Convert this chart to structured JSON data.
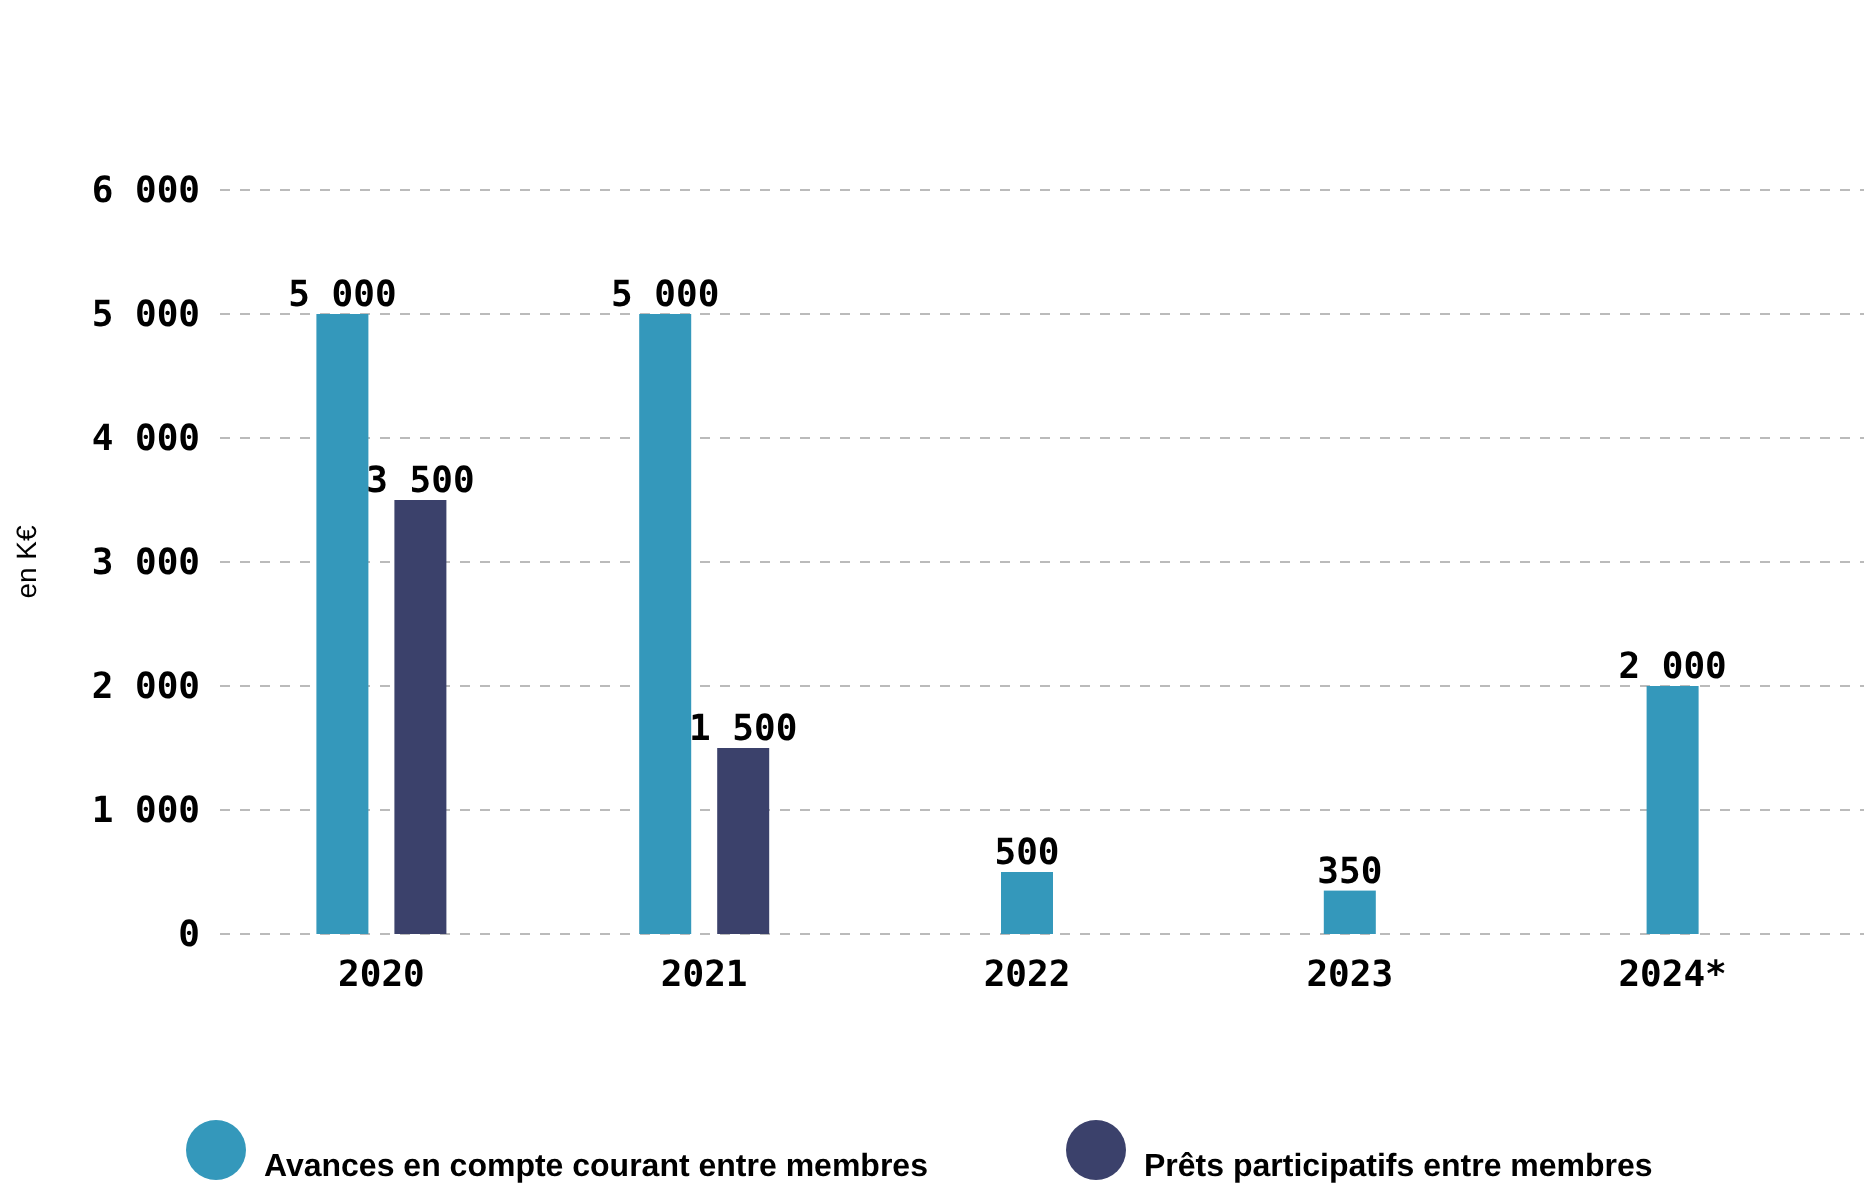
{
  "chart_data": {
    "type": "bar",
    "ylabel": "en K€",
    "categories": [
      "2020",
      "2021",
      "2022",
      "2023",
      "2024*"
    ],
    "series": [
      {
        "name": "Avances en compte courant entre membres",
        "color": "#3498bb",
        "values": [
          5000,
          5000,
          500,
          350,
          2000
        ],
        "value_labels": [
          "5 000",
          "5 000",
          "500",
          "350",
          "2 000"
        ]
      },
      {
        "name": "Prêts participatifs entre membres",
        "color": "#3b416b",
        "values": [
          3500,
          1500,
          null,
          null,
          null
        ],
        "value_labels": [
          "3 500",
          "1 500",
          null,
          null,
          null
        ]
      }
    ],
    "ylim": [
      0,
      6000
    ],
    "yticks": [
      {
        "value": 0,
        "label": "0"
      },
      {
        "value": 1000,
        "label": "1 000"
      },
      {
        "value": 2000,
        "label": "2 000"
      },
      {
        "value": 3000,
        "label": "3 000"
      },
      {
        "value": 4000,
        "label": "4 000"
      },
      {
        "value": 5000,
        "label": "5 000"
      },
      {
        "value": 6000,
        "label": "6 000"
      }
    ],
    "grid": "y",
    "legend": "bottom"
  }
}
